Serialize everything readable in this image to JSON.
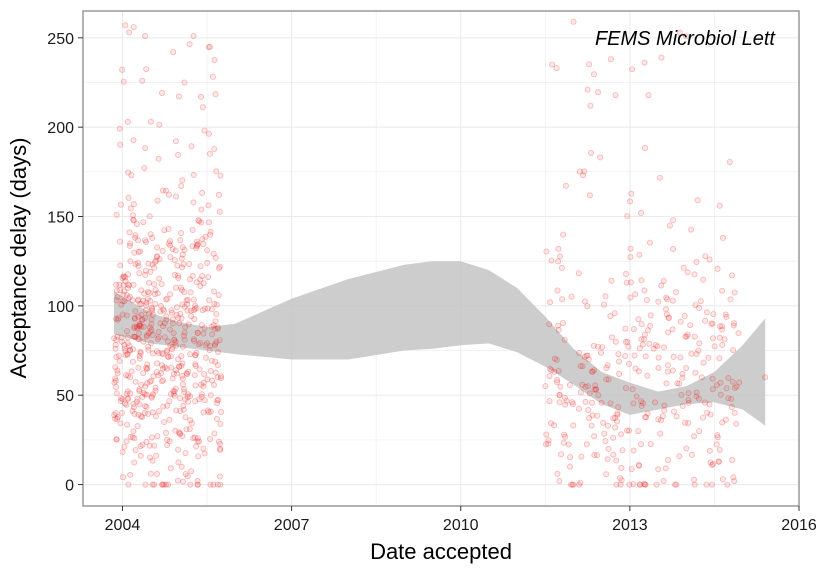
{
  "chart_data": {
    "type": "scatter",
    "annotation": "FEMS Microbiol Lett",
    "xlabel": "Date accepted",
    "ylabel": "Acceptance delay (days)",
    "xlim": [
      2003.3,
      2016.0
    ],
    "ylim": [
      -12,
      265
    ],
    "x_ticks": [
      2004,
      2007,
      2010,
      2013,
      2016
    ],
    "y_ticks": [
      0,
      50,
      100,
      150,
      200,
      250
    ],
    "grid": true,
    "legend": "none",
    "point_color": "#ee2222",
    "ribbon_color": "#c4c4c4",
    "frame_color": "#999999",
    "grid_color": "#ebebeb",
    "clusters": [
      {
        "x_range": [
          2003.85,
          2005.75
        ],
        "y_center": 80,
        "y_spread": 42,
        "n": 620,
        "y_max": 257
      },
      {
        "x_range": [
          2011.5,
          2014.95
        ],
        "y_center": 60,
        "y_spread": 38,
        "n": 380,
        "y_max": 259
      }
    ],
    "extreme_points": [
      {
        "x": 2004.05,
        "y": 257
      },
      {
        "x": 2004.12,
        "y": 253
      },
      {
        "x": 2004.2,
        "y": 256
      },
      {
        "x": 2004.9,
        "y": 242
      },
      {
        "x": 2005.55,
        "y": 245
      },
      {
        "x": 2004.35,
        "y": 226
      },
      {
        "x": 2005.1,
        "y": 225
      },
      {
        "x": 2011.62,
        "y": 235
      },
      {
        "x": 2011.7,
        "y": 233
      },
      {
        "x": 2012.0,
        "y": 259
      },
      {
        "x": 2012.25,
        "y": 221
      },
      {
        "x": 2012.3,
        "y": 212
      },
      {
        "x": 2013.2,
        "y": 152
      },
      {
        "x": 2015.4,
        "y": 60
      },
      {
        "x": 2011.75,
        "y": 2
      },
      {
        "x": 2013.6,
        "y": 2
      },
      {
        "x": 2014.65,
        "y": 3
      }
    ],
    "smooth_band": {
      "x": [
        2003.85,
        2004.5,
        2005.0,
        2005.5,
        2006.0,
        2007.0,
        2008.0,
        2009.0,
        2009.5,
        2010.0,
        2010.5,
        2011.0,
        2011.5,
        2012.0,
        2012.5,
        2013.0,
        2013.5,
        2014.0,
        2014.5,
        2015.0,
        2015.4
      ],
      "lower": [
        84,
        79,
        77,
        75,
        73,
        70,
        70,
        75,
        76,
        78,
        79,
        74,
        66,
        56,
        45,
        39,
        42,
        45,
        46,
        42,
        33
      ],
      "upper": [
        108,
        96,
        91,
        88,
        90,
        104,
        115,
        123,
        125,
        125,
        120,
        110,
        94,
        76,
        63,
        57,
        52,
        55,
        63,
        78,
        93
      ]
    }
  }
}
